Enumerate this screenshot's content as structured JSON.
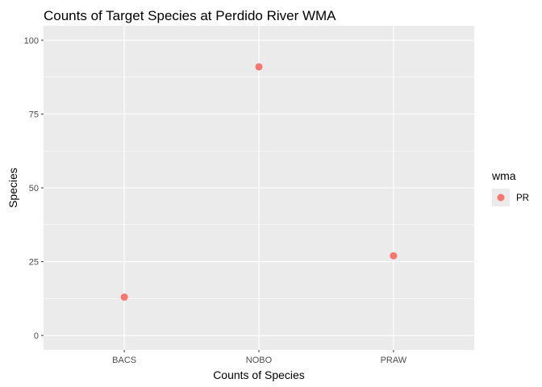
{
  "chart_data": {
    "type": "scatter",
    "title": "Counts of Target Species at Perdido River WMA",
    "xlabel": "Counts of Species",
    "ylabel": "Species",
    "categories": [
      "BACS",
      "NOBO",
      "PRAW"
    ],
    "series": [
      {
        "name": "PR",
        "values": [
          13,
          91,
          27
        ],
        "color": "#F8766D"
      }
    ],
    "ylim": [
      -4.9,
      104.9
    ],
    "yticks": [
      0,
      25,
      50,
      75,
      100
    ],
    "grid": true,
    "legend": {
      "title": "wma",
      "position": "right"
    },
    "colors": {
      "panel": "#EBEBEB",
      "grid_major": "#FFFFFF",
      "point": "#F8766D"
    }
  }
}
